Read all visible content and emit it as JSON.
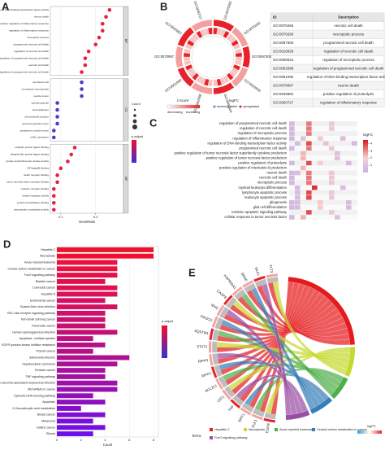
{
  "chart_data": [
    {
      "type": "dot",
      "label": "A",
      "xlabel": "GeneRatio",
      "xlim": [
        0.07,
        0.28
      ],
      "xticks": [
        0.1,
        0.2
      ],
      "grid": true,
      "size_title": "Count",
      "color_title": "p.adjust",
      "facets": [
        {
          "name": "BP",
          "color": "#e8213a",
          "categories": [
            "regulation of DNA-binding transcription factor activity",
            "neuron death",
            "positive regulation of inflammatory response",
            "regulation of inflammatory response",
            "necroptotic process",
            "programmed necrotic cell death",
            "regulation of necrotic cell death",
            "regulation of programmed necrotic cell death",
            "necrotic cell death",
            "positive regulation of programmed necrotic cell death"
          ],
          "values": [
            0.24,
            0.23,
            0.22,
            0.22,
            0.21,
            0.2,
            0.18,
            0.17,
            0.17,
            0.16
          ]
        },
        {
          "name": "CC",
          "color": "#4b3fc8",
          "categories": [
            "membrane raft",
            "membrane microdomain",
            "vesicle lumen",
            "specific granule",
            "focal adhesion",
            "cell-substrate junction",
            "secretory granule lumen",
            "cytoplasmic vesicle lumen",
            "ruffle membrane"
          ],
          "values": [
            0.16,
            0.16,
            0.16,
            0.09,
            0.09,
            0.09,
            0.09,
            0.08,
            0.08
          ]
        },
        {
          "name": "MF",
          "color": "#e32145",
          "categories": [
            "ubiquitin protein ligase binding",
            "ubiquitin-like protein ligase binding",
            "protein serine/threonine kinase activity",
            "NF-kappaB binding",
            "death receptor binding",
            "tumor necrosis factor receptor binding",
            "cytokine receptor binding",
            "kinase regulator activity",
            "protein phosphatase binding",
            "transcription coactivator activity"
          ],
          "values": [
            0.14,
            0.13,
            0.12,
            0.1,
            0.09,
            0.09,
            0.08,
            0.08,
            0.08,
            0.08
          ]
        }
      ]
    },
    {
      "type": "circular",
      "label": "B",
      "zscore_title": "z-score",
      "decreasing": "decreasing",
      "increasing": "increasing",
      "logfc_title": "logFC",
      "down": "downregulated",
      "up": "upregulated",
      "down_color": "#3a9bd5",
      "up_color": "#e8212a"
    },
    {
      "type": "heatmap",
      "label": "C",
      "legend_title": "logFC",
      "clim": [
        0,
        4.5
      ],
      "cticks": [
        1,
        2,
        3,
        4
      ],
      "rows": [
        "regulation of programmed necrotic cell death",
        "regulation of necrotic cell death",
        "regulation of necroptotic process",
        "regulation of inflammatory response",
        "regulation of DNA-binding transcription factor activity",
        "programmed necrotic cell death",
        "positive regulation of tumor necrosis factor superfamily cytokine production",
        "positive regulation of tumor necrosis factor production",
        "positive regulation of proteolysis",
        "positive regulation of interleukin-8 production",
        "neuron death",
        "necrotic cell death",
        "necroptotic process",
        "myeloid leukocyte differentiation",
        "lymphocyte apoptotic process",
        "leukocyte apoptotic process",
        "gliogenesis",
        "glial cell differentiation",
        "extrinsic apoptotic signaling pathway",
        "cellular response to tumor necrosis factor"
      ],
      "cells": [
        [
          0.4,
          null,
          null,
          3.2,
          null,
          null,
          null,
          1.5,
          null,
          null,
          null,
          null
        ],
        [
          0.4,
          null,
          null,
          3.2,
          null,
          null,
          null,
          1.5,
          null,
          null,
          null,
          null
        ],
        [
          0.4,
          null,
          null,
          3.2,
          null,
          null,
          null,
          null,
          null,
          null,
          null,
          null
        ],
        [
          0.4,
          null,
          1.2,
          null,
          null,
          2.1,
          null,
          null,
          null,
          0.8,
          null,
          null
        ],
        [
          null,
          0.6,
          null,
          3.8,
          null,
          null,
          1.1,
          null,
          null,
          null,
          null,
          0.5
        ],
        [
          0.4,
          null,
          null,
          3.2,
          null,
          null,
          null,
          1.5,
          null,
          null,
          null,
          null
        ],
        [
          null,
          null,
          2.4,
          null,
          null,
          null,
          null,
          null,
          1.0,
          null,
          null,
          null
        ],
        [
          null,
          null,
          2.4,
          null,
          null,
          null,
          null,
          null,
          1.0,
          null,
          null,
          null
        ],
        [
          0.4,
          null,
          null,
          3.8,
          null,
          1.8,
          null,
          null,
          null,
          null,
          0.6,
          null
        ],
        [
          null,
          null,
          2.4,
          null,
          null,
          null,
          null,
          null,
          null,
          null,
          null,
          null
        ],
        [
          0.4,
          0.6,
          null,
          3.2,
          null,
          null,
          null,
          1.5,
          null,
          null,
          null,
          null
        ],
        [
          0.4,
          null,
          null,
          3.2,
          null,
          null,
          null,
          1.5,
          null,
          null,
          null,
          null
        ],
        [
          0.4,
          null,
          null,
          3.2,
          null,
          null,
          null,
          1.5,
          null,
          null,
          null,
          null
        ],
        [
          null,
          0.6,
          null,
          null,
          4.2,
          null,
          null,
          null,
          null,
          0.8,
          null,
          null
        ],
        [
          null,
          0.6,
          null,
          3.8,
          null,
          null,
          null,
          1.5,
          null,
          null,
          null,
          null
        ],
        [
          null,
          0.6,
          null,
          3.8,
          null,
          null,
          null,
          1.5,
          null,
          null,
          null,
          null
        ],
        [
          0.4,
          0.6,
          null,
          null,
          null,
          2.1,
          null,
          null,
          null,
          null,
          0.6,
          null
        ],
        [
          0.4,
          0.6,
          null,
          null,
          null,
          2.1,
          null,
          null,
          null,
          null,
          0.6,
          null
        ],
        [
          null,
          null,
          null,
          3.8,
          null,
          null,
          null,
          1.5,
          null,
          null,
          null,
          null
        ],
        [
          0.4,
          null,
          2.4,
          null,
          null,
          null,
          null,
          null,
          1.0,
          null,
          null,
          null
        ]
      ]
    },
    {
      "type": "bar",
      "label": "D",
      "xlabel": "Count",
      "legend_title": "p.adjust",
      "xlim": [
        0,
        8.4
      ],
      "xticks": [
        0,
        2,
        4,
        6,
        8
      ],
      "categories": [
        "Hepatitis C",
        "Necroptosis",
        "Acute myeloid leukemia",
        "Central carbon metabolism in cancer",
        "FoxO signaling pathway",
        "Bladder cancer",
        "Colorectal cancer",
        "Hepatitis B",
        "Endometrial cancer",
        "Epstein-Barr virus infection",
        "RIG-I-like receptor signaling pathway",
        "Non-small cell lung cancer",
        "Pancreatic cancer",
        "Human cytomegalovirus infection",
        "Apoptosis - multiple species",
        "EGFR tyrosine kinase inhibitor resistance",
        "Thyroid cancer",
        "Salmonella infection",
        "Hepatocellular carcinoma",
        "Prostate cancer",
        "TNF signaling pathway",
        "Kaposi sarcoma-associated herpesvirus infection",
        "MicroRNAs in cancer",
        "Cytosolic DNA-sensing pathway",
        "Apoptosis",
        "2-Oxocarboxylic acid metabolism",
        "Breast cancer",
        "Melanoma",
        "Gastric cancer",
        "Glioma"
      ],
      "values": [
        8,
        8,
        5,
        5,
        5,
        4,
        5,
        5,
        4,
        5,
        4,
        4,
        4,
        5,
        3,
        4,
        3,
        6,
        5,
        4,
        4,
        5,
        5,
        3,
        4,
        2,
        4,
        3,
        4,
        3
      ],
      "colors": [
        "#f0102e",
        "#f0102e",
        "#ea1040",
        "#ea1040",
        "#e61048",
        "#e01050",
        "#e01050",
        "#da1058",
        "#d41060",
        "#d41060",
        "#ce1068",
        "#c81070",
        "#c81070",
        "#c21078",
        "#bc1080",
        "#b61088",
        "#b61088",
        "#b01090",
        "#aa1098",
        "#a410a0",
        "#a410a0",
        "#9e10a8",
        "#9810b0",
        "#9210b8",
        "#8c10c0",
        "#8610c8",
        "#8010d0",
        "#7a10d8",
        "#7410e0",
        "#6e10e8"
      ]
    },
    {
      "type": "chord",
      "label": "E",
      "legend_title": "Terms",
      "color_title": "logFC",
      "genes": [
        "EGFR",
        "PLK1",
        "SIRT1",
        "TNF",
        "LEF1",
        "BCL2L1",
        "RIPK1",
        "RIPK3",
        "STAT3",
        "SQSTM1",
        "PIK3CD",
        "IDH2",
        "CASP8",
        "HSP90AA1",
        "BRAF",
        "MLKL",
        "FLT3"
      ],
      "series": [
        {
          "name": "Hepatitis C",
          "color": "#e41a1c"
        },
        {
          "name": "Necroptosis",
          "color": "#c5d92e"
        },
        {
          "name": "Acute myeloid leukemia",
          "color": "#4daf4a"
        },
        {
          "name": "Central carbon metabolism in cancer",
          "color": "#377eb8"
        },
        {
          "name": "FoxO signaling pathway",
          "color": "#984ea3"
        }
      ]
    }
  ],
  "table": {
    "columns": [
      "ID",
      "Description"
    ],
    "rows": [
      [
        "GO:0070265",
        "necrotic cell death"
      ],
      [
        "GO:0070266",
        "necroptotic process"
      ],
      [
        "GO:0097300",
        "programmed necrotic cell death"
      ],
      [
        "GO:0010939",
        "regulation of necrotic cell death"
      ],
      [
        "GO:0060544",
        "regulation of necroptotic process"
      ],
      [
        "GO:0062098",
        "regulation of programmed necrotic cell death"
      ],
      [
        "GO:0051090",
        "regulation of DNA-binding transcription factor activity"
      ],
      [
        "GO:0070997",
        "neuron death"
      ],
      [
        "GO:0045862",
        "positive regulation of proteolysis"
      ],
      [
        "GO:0050727",
        "regulation of inflammatory response"
      ]
    ]
  }
}
